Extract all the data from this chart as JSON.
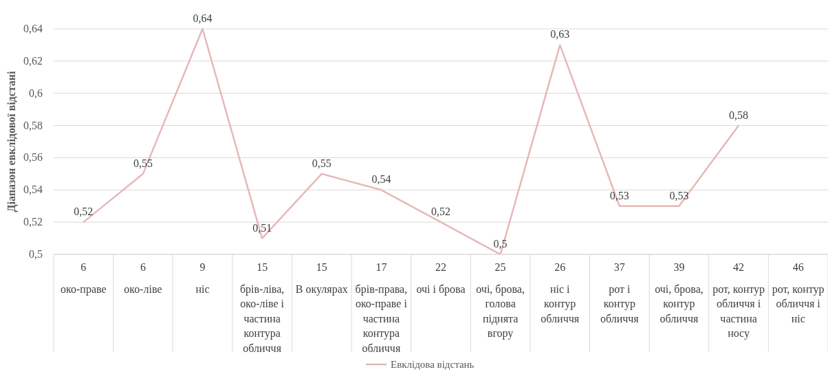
{
  "chart_data": {
    "type": "line",
    "ylabel": "Діапазон евклідової відстані",
    "categories": [
      "6\nоко-праве",
      "6\nоко-ліве",
      "9\nніс",
      "15\nбрів-ліва,\nоко-ліве і\nчастина\nконтура\nобличчя",
      "15\nВ окулярах",
      "17\nбрів-права,\nоко-праве і\nчастина\nконтура\nобличчя",
      "22\nочі і брова",
      "25\nочі, брова,\nголова\nпіднята\nвгору",
      "26\nніс  і\nконтур\nобличчя",
      "37\nрот і\nконтур\nобличчя",
      "39\nочі, брова,\nконтур\nобличчя",
      "42\nрот, контур\nобличчя і\nчастина\nносу",
      "46\nрот, контур\nобличчя і\nніс"
    ],
    "series": [
      {
        "name": "Евклідова відстань",
        "color": "#e6b8b7",
        "values": [
          0.52,
          0.55,
          0.64,
          0.51,
          0.55,
          0.54,
          0.52,
          0.5,
          0.63,
          0.53,
          0.53,
          0.58,
          null
        ],
        "value_labels": [
          "0,52",
          "0,55",
          "0,64",
          "0,51",
          "0,55",
          "0,54",
          "0,52",
          "0,5",
          "0,63",
          "0,53",
          "0,53",
          "0,58",
          null
        ]
      }
    ],
    "ylim": [
      0.5,
      0.64
    ],
    "yticks": [
      {
        "value": 0.5,
        "label": "0,5"
      },
      {
        "value": 0.52,
        "label": "0,52"
      },
      {
        "value": 0.54,
        "label": "0,54"
      },
      {
        "value": 0.56,
        "label": "0,56"
      },
      {
        "value": 0.58,
        "label": "0,58"
      },
      {
        "value": 0.6,
        "label": "0,6"
      },
      {
        "value": 0.62,
        "label": "0,62"
      },
      {
        "value": 0.64,
        "label": "0,64"
      }
    ],
    "grid": "y",
    "legend": "bottom",
    "marker": "none",
    "line_style": "solid"
  }
}
